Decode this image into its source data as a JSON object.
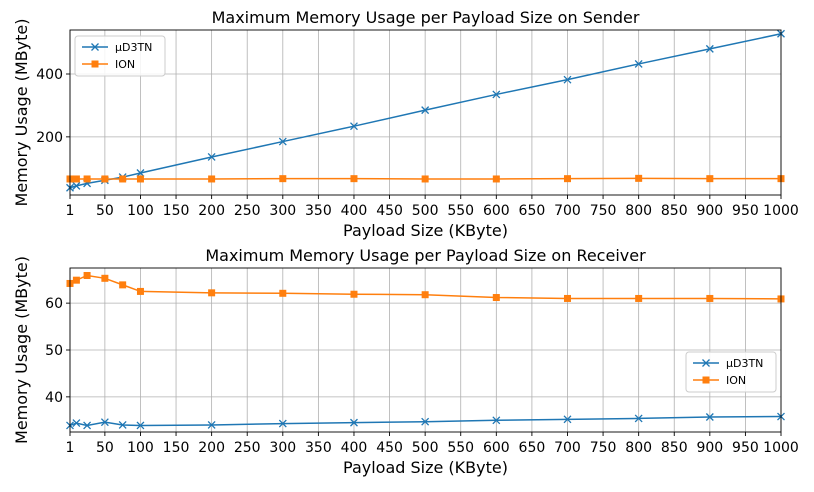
{
  "chart_data": [
    {
      "type": "line",
      "title": "Maximum Memory Usage per Payload Size on Sender",
      "xlabel": "Payload Size (KByte)",
      "ylabel": "Memory Usage (MByte)",
      "x": [
        1,
        10,
        25,
        50,
        75,
        100,
        200,
        300,
        400,
        500,
        600,
        700,
        800,
        900,
        1000
      ],
      "xticks": [
        1,
        50,
        100,
        150,
        200,
        250,
        300,
        350,
        400,
        450,
        500,
        550,
        600,
        650,
        700,
        750,
        800,
        850,
        900,
        950,
        1000
      ],
      "xlim": [
        1,
        1000
      ],
      "yticks": [
        200,
        400
      ],
      "ylim": [
        15,
        540
      ],
      "grid": true,
      "legend_position": "upper-left",
      "series": [
        {
          "name": "µD3TN",
          "color": "#1f77b4",
          "marker": "x",
          "values": [
            38,
            44,
            52,
            62,
            72,
            85,
            136,
            185,
            234,
            285,
            335,
            382,
            432,
            480,
            528
          ]
        },
        {
          "name": "ION",
          "color": "#ff7f0e",
          "marker": "square",
          "values": [
            66,
            66,
            66,
            66,
            66,
            66,
            66,
            67,
            67,
            66,
            66,
            67,
            68,
            67,
            67
          ]
        }
      ]
    },
    {
      "type": "line",
      "title": "Maximum Memory Usage per Payload Size on Receiver",
      "xlabel": "Payload Size (KByte)",
      "ylabel": "Memory Usage (MByte)",
      "x": [
        1,
        10,
        25,
        50,
        75,
        100,
        200,
        300,
        400,
        500,
        600,
        700,
        800,
        900,
        1000
      ],
      "xticks": [
        1,
        50,
        100,
        150,
        200,
        250,
        300,
        350,
        400,
        450,
        500,
        550,
        600,
        650,
        700,
        750,
        800,
        850,
        900,
        950,
        1000
      ],
      "xlim": [
        1,
        1000
      ],
      "yticks": [
        40,
        50,
        60
      ],
      "ylim": [
        32.5,
        67.5
      ],
      "grid": true,
      "legend_position": "center-right",
      "series": [
        {
          "name": "µD3TN",
          "color": "#1f77b4",
          "marker": "x",
          "values": [
            33.9,
            34.4,
            33.9,
            34.6,
            34.0,
            33.9,
            34.0,
            34.3,
            34.5,
            34.7,
            35.0,
            35.2,
            35.4,
            35.7,
            35.8
          ]
        },
        {
          "name": "ION",
          "color": "#ff7f0e",
          "marker": "square",
          "values": [
            64.2,
            64.9,
            65.9,
            65.3,
            63.9,
            62.5,
            62.2,
            62.1,
            61.9,
            61.8,
            61.2,
            61.0,
            61.0,
            61.0,
            60.9
          ]
        }
      ]
    }
  ]
}
